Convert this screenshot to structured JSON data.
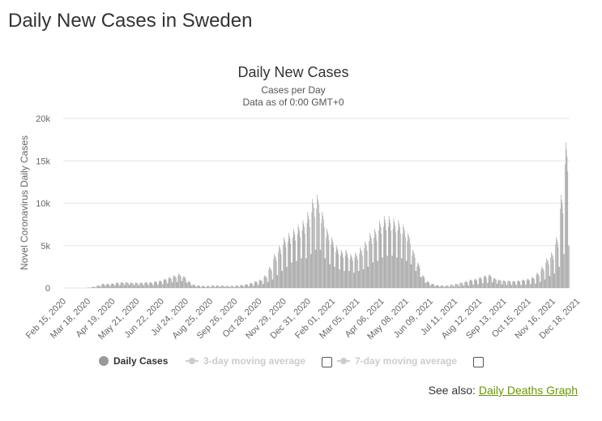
{
  "page": {
    "title": "Daily New Cases in Sweden",
    "see_also_label": "See also:",
    "see_also_link": "Daily Deaths Graph"
  },
  "legend": {
    "daily": "Daily Cases",
    "avg3": "3-day moving average",
    "avg7": "7-day moving average"
  },
  "colors": {
    "bars": "#999999",
    "grid": "#e6e6e6",
    "link": "#669900",
    "legend_hidden": "#cccccc"
  },
  "chart_data": {
    "type": "bar",
    "title": "Daily New Cases",
    "subtitle_line1": "Cases per Day",
    "subtitle_line2": "Data as of 0:00 GMT+0",
    "ylabel": "Novel Coronavirus Daily Cases",
    "xlabel": "",
    "ylim": [
      0,
      20000
    ],
    "y_ticks": [
      0,
      5000,
      10000,
      15000,
      20000
    ],
    "y_tick_labels": [
      "0",
      "5k",
      "10k",
      "15k",
      "20k"
    ],
    "x_range": [
      "2020-02-15",
      "2022-01-03"
    ],
    "x_tick_labels": [
      "Feb 15, 2020",
      "Mar 18, 2020",
      "Apr 19, 2020",
      "May 21, 2020",
      "Jun 22, 2020",
      "Jul 24, 2020",
      "Aug 25, 2020",
      "Sep 26, 2020",
      "Oct 28, 2020",
      "Nov 29, 2020",
      "Dec 31, 2020",
      "Feb 01, 2021",
      "Mar 05, 2021",
      "Apr 06, 2021",
      "May 08, 2021",
      "Jun 09, 2021",
      "Jul 11, 2021",
      "Aug 12, 2021",
      "Sep 13, 2021",
      "Oct 15, 2021",
      "Nov 16, 2021",
      "Dec 18, 2021"
    ],
    "grid": true,
    "legend_position": "bottom",
    "series": [
      {
        "name": "Daily Cases",
        "weekly_peak_values": [
          0,
          0,
          0,
          0,
          0,
          50,
          150,
          300,
          500,
          500,
          550,
          650,
          700,
          700,
          650,
          650,
          650,
          700,
          700,
          800,
          900,
          1100,
          1300,
          1500,
          1700,
          1400,
          800,
          400,
          300,
          250,
          250,
          300,
          300,
          300,
          250,
          250,
          300,
          350,
          450,
          600,
          800,
          1000,
          1500,
          2500,
          4000,
          5000,
          6000,
          6500,
          7000,
          7500,
          8000,
          9000,
          10500,
          11000,
          9000,
          7000,
          6000,
          5000,
          4500,
          4500,
          4000,
          4200,
          4800,
          5500,
          6500,
          7000,
          8000,
          8500,
          8500,
          8200,
          8000,
          7500,
          6500,
          4500,
          3000,
          1500,
          800,
          500,
          350,
          300,
          300,
          400,
          500,
          650,
          800,
          1000,
          1100,
          1300,
          1500,
          1600,
          1200,
          1000,
          900,
          900,
          850,
          900,
          1000,
          1100,
          1300,
          1800,
          2500,
          3500,
          4200,
          6000,
          11000,
          17200
        ],
        "weekly_low_values": [
          0,
          0,
          0,
          0,
          0,
          20,
          60,
          150,
          250,
          250,
          280,
          300,
          350,
          350,
          300,
          300,
          300,
          350,
          350,
          400,
          450,
          550,
          650,
          700,
          800,
          600,
          300,
          150,
          100,
          80,
          80,
          100,
          100,
          100,
          80,
          80,
          100,
          150,
          200,
          250,
          350,
          450,
          700,
          1000,
          1500,
          2000,
          2500,
          3000,
          3200,
          3500,
          3500,
          4000,
          4500,
          4500,
          3500,
          2800,
          2500,
          2200,
          2000,
          2000,
          1800,
          2000,
          2200,
          2500,
          3000,
          3200,
          3600,
          3800,
          3800,
          3600,
          3500,
          3200,
          2800,
          2000,
          1300,
          600,
          300,
          200,
          150,
          100,
          100,
          150,
          200,
          250,
          300,
          400,
          450,
          550,
          600,
          650,
          500,
          400,
          350,
          350,
          350,
          350,
          400,
          450,
          500,
          700,
          1000,
          1400,
          1700,
          2500,
          4000,
          5000
        ]
      }
    ]
  }
}
